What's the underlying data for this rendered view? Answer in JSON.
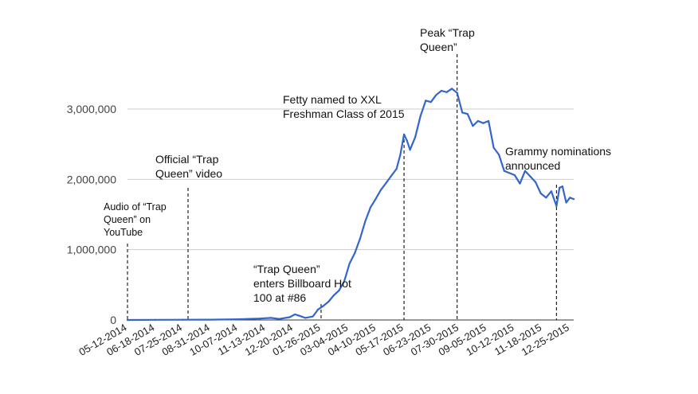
{
  "chart_data": {
    "type": "line",
    "title": "",
    "xlabel": "",
    "ylabel": "",
    "ylim": [
      0,
      3000000
    ],
    "grid": true,
    "legend": "none",
    "y_ticks": [
      {
        "value": 0,
        "label": "0"
      },
      {
        "value": 1000000,
        "label": "1,000,000"
      },
      {
        "value": 2000000,
        "label": "2,000,000"
      },
      {
        "value": 3000000,
        "label": "3,000,000"
      }
    ],
    "x_tick_labels": [
      "05-12-2014",
      "06-18-2014",
      "07-25-2014",
      "08-31-2014",
      "10-07-2014",
      "11-13-2014",
      "12-20-2014",
      "01-26-2015",
      "03-04-2015",
      "04-10-2015",
      "05-17-2015",
      "06-23-2015",
      "07-30-2015",
      "09-05-2015",
      "10-12-2015",
      "11-18-2015",
      "12-25-2015"
    ],
    "series": [
      {
        "color": "#3366cc",
        "points": [
          [
            "2014-05-12",
            0
          ],
          [
            "2014-06-18",
            2000
          ],
          [
            "2014-07-25",
            3000
          ],
          [
            "2014-08-31",
            5000
          ],
          [
            "2014-10-07",
            10000
          ],
          [
            "2014-11-05",
            20000
          ],
          [
            "2014-11-20",
            30000
          ],
          [
            "2014-12-01",
            15000
          ],
          [
            "2014-12-15",
            40000
          ],
          [
            "2014-12-22",
            80000
          ],
          [
            "2014-12-28",
            60000
          ],
          [
            "2015-01-05",
            30000
          ],
          [
            "2015-01-15",
            50000
          ],
          [
            "2015-01-22",
            150000
          ],
          [
            "2015-01-29",
            200000
          ],
          [
            "2015-02-05",
            260000
          ],
          [
            "2015-02-12",
            350000
          ],
          [
            "2015-02-19",
            420000
          ],
          [
            "2015-02-26",
            550000
          ],
          [
            "2015-03-05",
            800000
          ],
          [
            "2015-03-12",
            950000
          ],
          [
            "2015-03-19",
            1150000
          ],
          [
            "2015-03-26",
            1400000
          ],
          [
            "2015-04-02",
            1600000
          ],
          [
            "2015-04-09",
            1720000
          ],
          [
            "2015-04-16",
            1850000
          ],
          [
            "2015-04-23",
            1950000
          ],
          [
            "2015-04-30",
            2050000
          ],
          [
            "2015-05-07",
            2150000
          ],
          [
            "2015-05-12",
            2350000
          ],
          [
            "2015-05-17",
            2640000
          ],
          [
            "2015-05-21",
            2550000
          ],
          [
            "2015-05-25",
            2420000
          ],
          [
            "2015-06-01",
            2600000
          ],
          [
            "2015-06-08",
            2900000
          ],
          [
            "2015-06-15",
            3120000
          ],
          [
            "2015-06-22",
            3100000
          ],
          [
            "2015-06-29",
            3200000
          ],
          [
            "2015-07-06",
            3260000
          ],
          [
            "2015-07-13",
            3240000
          ],
          [
            "2015-07-20",
            3290000
          ],
          [
            "2015-07-27",
            3230000
          ],
          [
            "2015-08-03",
            2950000
          ],
          [
            "2015-08-10",
            2930000
          ],
          [
            "2015-08-17",
            2760000
          ],
          [
            "2015-08-24",
            2830000
          ],
          [
            "2015-08-31",
            2800000
          ],
          [
            "2015-09-07",
            2830000
          ],
          [
            "2015-09-14",
            2450000
          ],
          [
            "2015-09-21",
            2350000
          ],
          [
            "2015-09-28",
            2120000
          ],
          [
            "2015-10-05",
            2090000
          ],
          [
            "2015-10-12",
            2060000
          ],
          [
            "2015-10-19",
            1940000
          ],
          [
            "2015-10-26",
            2120000
          ],
          [
            "2015-11-02",
            2040000
          ],
          [
            "2015-11-09",
            1960000
          ],
          [
            "2015-11-16",
            1800000
          ],
          [
            "2015-11-23",
            1740000
          ],
          [
            "2015-11-30",
            1830000
          ],
          [
            "2015-12-07",
            1620000
          ],
          [
            "2015-12-11",
            1880000
          ],
          [
            "2015-12-15",
            1900000
          ],
          [
            "2015-12-20",
            1670000
          ],
          [
            "2015-12-25",
            1740000
          ],
          [
            "2015-12-30",
            1720000
          ]
        ]
      }
    ],
    "annotations": [
      {
        "date": "2014-05-12",
        "lines": [
          "Audio of “Trap",
          "Queen” on",
          "YouTube"
        ]
      },
      {
        "date": "2014-08-01",
        "lines": [
          "Official “Trap",
          "Queen” video"
        ]
      },
      {
        "date": "2015-01-26",
        "lines": [
          "“Trap Queen”",
          "enters Billboard Hot",
          "100 at #86"
        ]
      },
      {
        "date": "2015-05-17",
        "lines": [
          "Fetty named to XXL",
          "Freshman Class of 2015"
        ]
      },
      {
        "date": "2015-07-27",
        "lines": [
          "Peak “Trap",
          "Queen”"
        ]
      },
      {
        "date": "2015-12-07",
        "lines": [
          "Grammy nominations",
          "announced"
        ]
      }
    ]
  }
}
